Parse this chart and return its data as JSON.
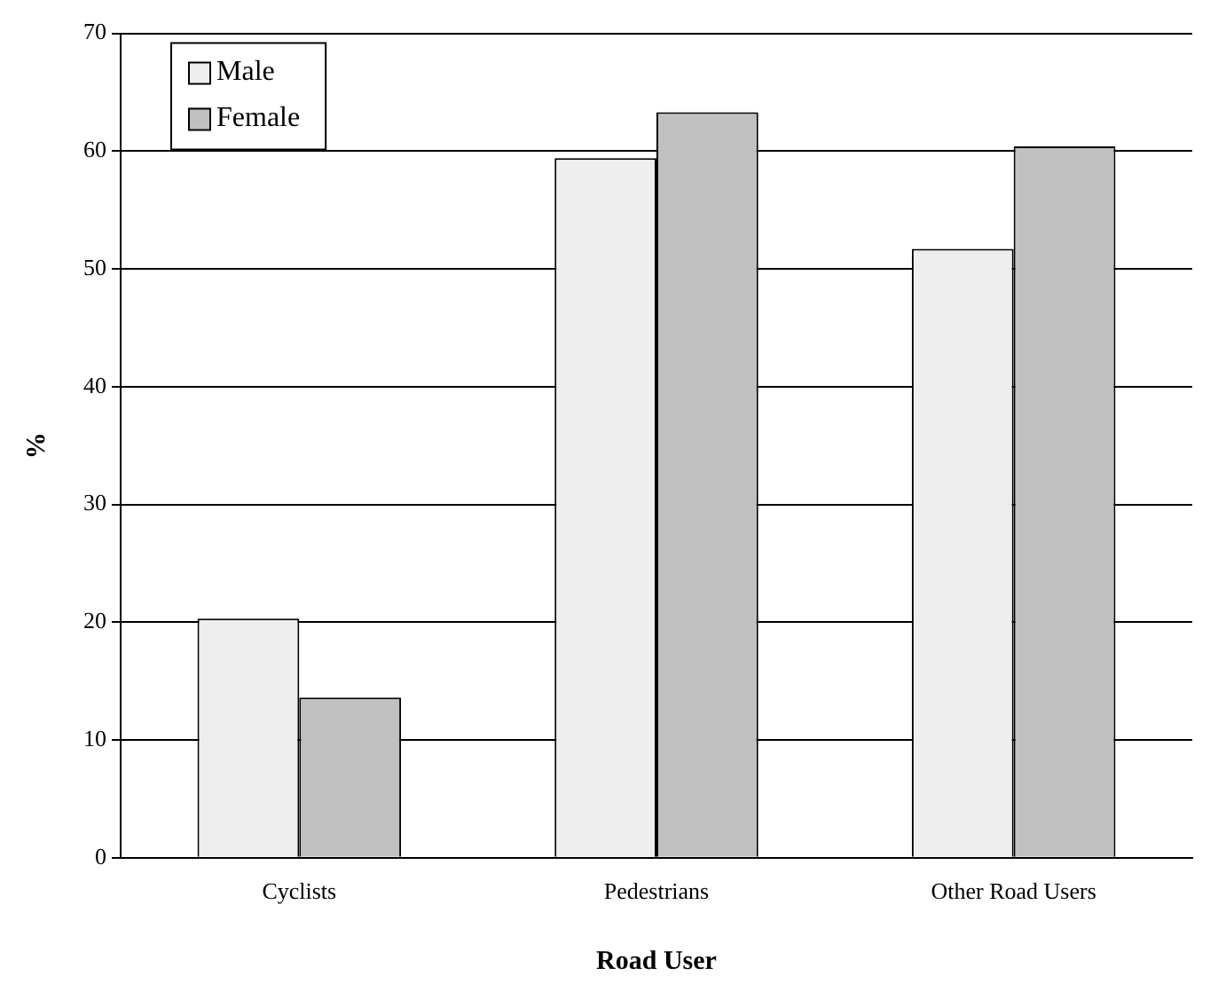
{
  "chart_data": {
    "type": "bar",
    "xlabel": "Road User",
    "ylabel": "%",
    "categories": [
      "Cyclists",
      "Pedestrians",
      "Other Road Users"
    ],
    "series": [
      {
        "name": "Male",
        "color": "#eeeeee",
        "values": [
          20.3,
          59.4,
          51.7
        ]
      },
      {
        "name": "Female",
        "color": "#c0c0c0",
        "values": [
          13.6,
          63.3,
          60.4
        ]
      }
    ],
    "ylim": [
      0,
      70
    ],
    "yticks": [
      0,
      10,
      20,
      30,
      40,
      50,
      60,
      70
    ],
    "grid": "y",
    "legend": "top left"
  }
}
